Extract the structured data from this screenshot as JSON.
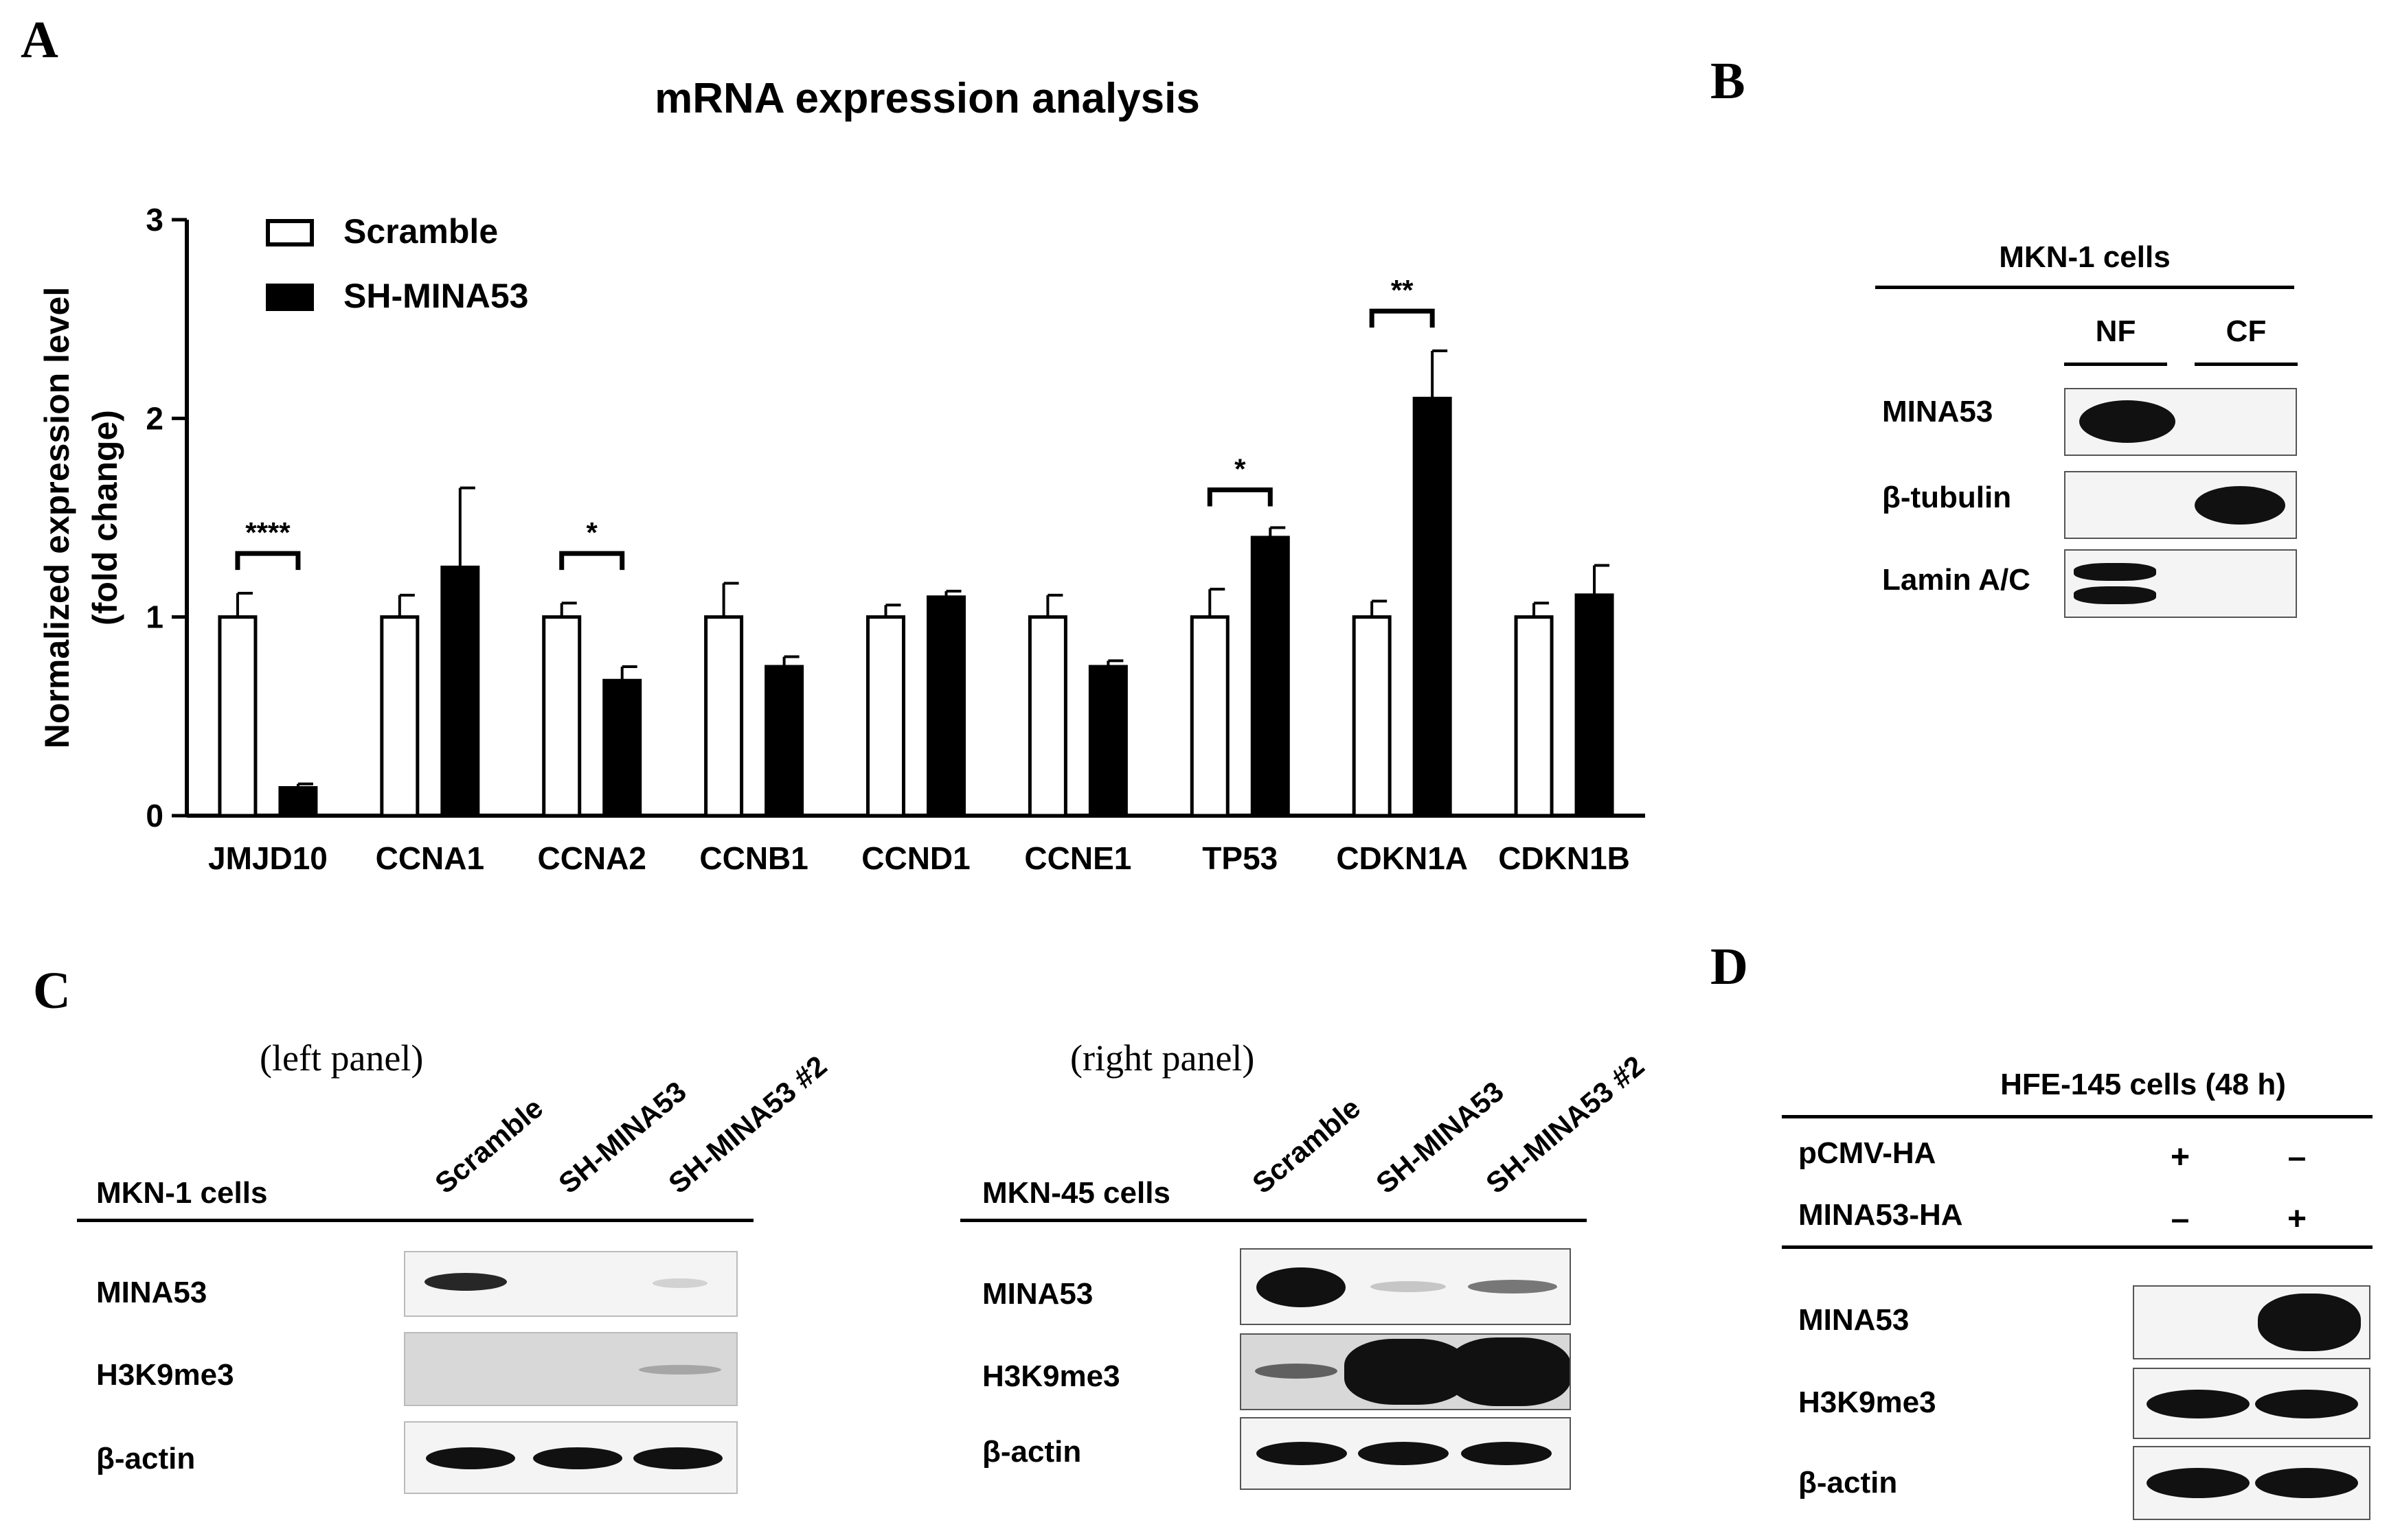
{
  "panels": {
    "A": "A",
    "B": "B",
    "C": "C",
    "D": "D"
  },
  "chart_data": {
    "type": "bar",
    "title": "mRNA expression analysis",
    "ylabel": [
      "Normalized expression level",
      "(fold change)"
    ],
    "ylim": [
      0,
      3
    ],
    "yticks": [
      0,
      1,
      2,
      3
    ],
    "categories": [
      "JMJD10",
      "CCNA1",
      "CCNA2",
      "CCNB1",
      "CCND1",
      "CCNE1",
      "TP53",
      "CDKN1A",
      "CDKN1B"
    ],
    "series": [
      {
        "name": "Scramble",
        "fill": "#ffffff",
        "values": [
          1,
          1,
          1,
          1,
          1,
          1,
          1,
          1,
          1
        ],
        "errors": [
          0.12,
          0.11,
          0.07,
          0.17,
          0.06,
          0.11,
          0.14,
          0.08,
          0.07
        ]
      },
      {
        "name": "SH-MINA53",
        "fill": "#000000",
        "values": [
          0.14,
          1.25,
          0.68,
          0.75,
          1.1,
          0.75,
          1.4,
          2.1,
          1.11
        ],
        "errors": [
          0.02,
          0.4,
          0.07,
          0.05,
          0.03,
          0.03,
          0.05,
          0.24,
          0.15
        ]
      }
    ],
    "significance": [
      {
        "category": 0,
        "label": "****",
        "level": 1.32
      },
      {
        "category": 2,
        "label": "*",
        "level": 1.32
      },
      {
        "category": 6,
        "label": "*",
        "level": 1.64
      },
      {
        "category": 7,
        "label": "**",
        "level": 2.54
      }
    ]
  },
  "panelB": {
    "title": "MKN-1 cells",
    "columns": [
      "NF",
      "CF"
    ],
    "rows": [
      "MINA53",
      "β-tubulin",
      "Lamin A/C"
    ]
  },
  "panelC": {
    "left_note": "(left panel)",
    "right_note": "(right panel)",
    "left_title": "MKN-1 cells",
    "right_title": "MKN-45 cells",
    "columns": [
      "Scramble",
      "SH-MINA53",
      "SH-MINA53 #2"
    ],
    "rows": [
      "MINA53",
      "H3K9me3",
      "β-actin"
    ]
  },
  "panelD": {
    "title": "HFE-145 cells (48 h)",
    "conditions": [
      {
        "label": "pCMV-HA",
        "values": [
          "+",
          "–"
        ]
      },
      {
        "label": "MINA53-HA",
        "values": [
          "–",
          "+"
        ]
      }
    ],
    "rows": [
      "MINA53",
      "H3K9me3",
      "β-actin"
    ]
  }
}
